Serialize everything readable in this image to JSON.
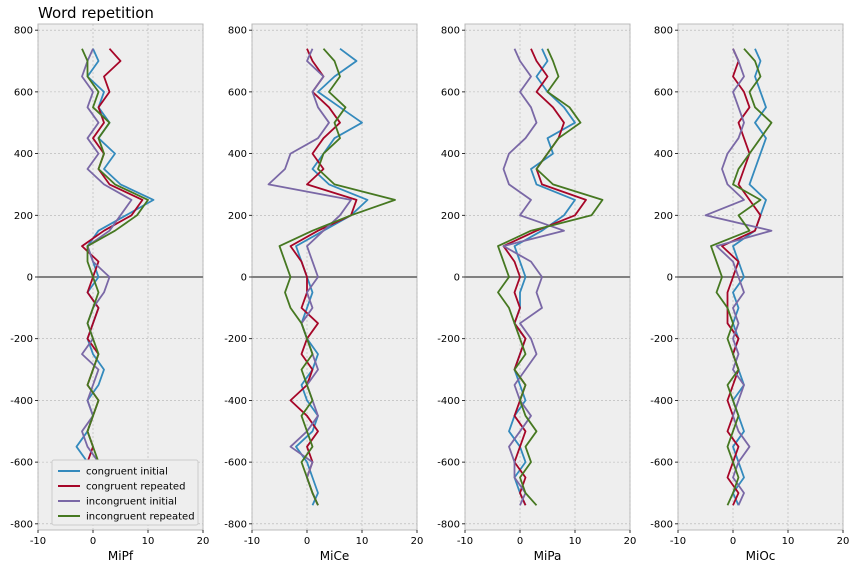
{
  "chart_data": {
    "type": "line",
    "title": "Word repetition",
    "orientation": "vertical-traces",
    "grid": true,
    "legend_placement": "lower-left of first panel",
    "series_meta": [
      {
        "name": "congruent initial",
        "color": "#348ABD"
      },
      {
        "name": "congruent repeated",
        "color": "#A60628"
      },
      {
        "name": "incongruent initial",
        "color": "#7A68A6"
      },
      {
        "name": "incongruent repeated",
        "color": "#467821"
      }
    ],
    "xlim": [
      -10,
      20
    ],
    "ylim": [
      -820,
      820
    ],
    "xticks": [
      -10,
      0,
      10,
      20
    ],
    "yticks": [
      -800,
      -600,
      -400,
      -200,
      0,
      200,
      400,
      600,
      800
    ],
    "ylim_note": "",
    "panels": [
      {
        "xlabel": "MiPf",
        "y": [
          -740,
          -700,
          -650,
          -600,
          -550,
          -500,
          -450,
          -400,
          -350,
          -300,
          -250,
          -200,
          -150,
          -100,
          -50,
          0,
          50,
          100,
          150,
          200,
          250,
          300,
          350,
          400,
          450,
          500,
          550,
          600,
          650,
          700,
          740
        ],
        "series": [
          {
            "name": "congruent initial",
            "values": [
              0,
              -1,
              0,
              -1,
              -3,
              -1,
              0,
              -1,
              1,
              2,
              0,
              -1,
              0,
              1,
              -1,
              1,
              0,
              -1,
              1,
              6,
              11,
              5,
              2,
              4,
              1,
              3,
              1,
              2,
              -1,
              1,
              0
            ]
          },
          {
            "name": "congruent repeated",
            "values": [
              -1,
              0,
              1,
              -1,
              0,
              -1,
              0,
              1,
              -1,
              0,
              1,
              -1,
              0,
              1,
              -1,
              0,
              1,
              -2,
              2,
              7,
              9,
              3,
              1,
              2,
              0,
              2,
              1,
              3,
              2,
              5,
              3
            ]
          },
          {
            "name": "incongruent initial",
            "values": [
              1,
              0,
              -1,
              1,
              -1,
              -2,
              0,
              -1,
              0,
              1,
              -2,
              0,
              -1,
              0,
              2,
              3,
              0,
              -1,
              3,
              5,
              7,
              2,
              -1,
              1,
              -1,
              1,
              -1,
              0,
              -2,
              -1,
              0
            ]
          },
          {
            "name": "incongruent repeated",
            "values": [
              -1,
              0,
              -1,
              1,
              0,
              -1,
              0,
              1,
              -1,
              0,
              1,
              0,
              -1,
              0,
              1,
              0,
              -1,
              -1,
              4,
              8,
              10,
              4,
              1,
              2,
              1,
              3,
              0,
              1,
              -1,
              -1,
              -2
            ]
          }
        ]
      },
      {
        "xlabel": "MiCe",
        "y": [
          -740,
          -700,
          -650,
          -600,
          -550,
          -500,
          -450,
          -400,
          -350,
          -300,
          -250,
          -200,
          -150,
          -100,
          -50,
          0,
          50,
          100,
          150,
          200,
          250,
          300,
          350,
          400,
          450,
          500,
          550,
          600,
          650,
          700,
          740
        ],
        "series": [
          {
            "name": "congruent initial",
            "values": [
              1,
              2,
              1,
              0,
              -2,
              1,
              2,
              0,
              -1,
              1,
              2,
              0,
              -1,
              0,
              1,
              0,
              -1,
              -2,
              3,
              8,
              11,
              4,
              1,
              3,
              5,
              10,
              6,
              2,
              5,
              9,
              6
            ]
          },
          {
            "name": "congruent repeated",
            "values": [
              2,
              1,
              0,
              1,
              0,
              2,
              0,
              -3,
              0,
              1,
              -1,
              0,
              2,
              -1,
              0,
              0,
              -1,
              -3,
              2,
              8,
              9,
              0,
              3,
              1,
              3,
              6,
              4,
              1,
              3,
              1,
              0
            ]
          },
          {
            "name": "incongruent initial",
            "values": [
              2,
              1,
              0,
              1,
              -3,
              0,
              2,
              1,
              0,
              2,
              1,
              0,
              -1,
              1,
              0,
              2,
              1,
              0,
              3,
              6,
              8,
              -7,
              -4,
              -3,
              2,
              4,
              2,
              1,
              3,
              0,
              1
            ]
          },
          {
            "name": "incongruent repeated",
            "values": [
              2,
              1,
              0,
              -1,
              1,
              0,
              -1,
              1,
              0,
              -1,
              1,
              0,
              -1,
              -3,
              -4,
              -3,
              -4,
              -5,
              1,
              8,
              16,
              5,
              2,
              3,
              6,
              5,
              7,
              4,
              6,
              5,
              3
            ]
          }
        ]
      },
      {
        "xlabel": "MiPa",
        "y": [
          -740,
          -700,
          -650,
          -600,
          -550,
          -500,
          -450,
          -400,
          -350,
          -300,
          -250,
          -200,
          -150,
          -100,
          -50,
          0,
          50,
          100,
          150,
          200,
          250,
          300,
          350,
          400,
          450,
          500,
          550,
          600,
          650,
          700,
          740
        ],
        "series": [
          {
            "name": "congruent initial",
            "values": [
              1,
              0,
              -1,
              1,
              0,
              -2,
              -1,
              1,
              0,
              -1,
              0,
              1,
              -1,
              0,
              0,
              1,
              0,
              -1,
              4,
              8,
              10,
              3,
              2,
              6,
              5,
              10,
              8,
              5,
              3,
              5,
              4
            ]
          },
          {
            "name": "congruent repeated",
            "values": [
              1,
              0,
              1,
              -1,
              0,
              1,
              -1,
              0,
              1,
              -1,
              0,
              1,
              -1,
              0,
              -1,
              0,
              -1,
              -3,
              3,
              10,
              12,
              4,
              3,
              5,
              7,
              8,
              6,
              3,
              5,
              3,
              2
            ]
          },
          {
            "name": "incongruent initial",
            "values": [
              0,
              1,
              -1,
              -1,
              -2,
              0,
              2,
              0,
              -1,
              1,
              3,
              2,
              0,
              4,
              3,
              4,
              2,
              -3,
              8,
              0,
              2,
              -2,
              -3,
              -2,
              1,
              3,
              2,
              0,
              2,
              0,
              -1
            ]
          },
          {
            "name": "incongruent repeated",
            "values": [
              3,
              1,
              0,
              2,
              1,
              3,
              1,
              0,
              1,
              -1,
              1,
              0,
              -1,
              -2,
              -4,
              -2,
              -3,
              -4,
              2,
              13,
              15,
              6,
              3,
              5,
              7,
              11,
              9,
              5,
              7,
              6,
              5
            ]
          }
        ]
      },
      {
        "xlabel": "MiOc",
        "y": [
          -740,
          -700,
          -650,
          -600,
          -550,
          -500,
          -450,
          -400,
          -350,
          -300,
          -250,
          -200,
          -150,
          -100,
          -50,
          0,
          50,
          100,
          150,
          200,
          250,
          300,
          350,
          400,
          450,
          500,
          550,
          600,
          650,
          700,
          740
        ],
        "series": [
          {
            "name": "congruent initial",
            "values": [
              1,
              0,
              2,
              1,
              0,
              2,
              1,
              0,
              2,
              1,
              0,
              1,
              0,
              1,
              0,
              2,
              1,
              0,
              4,
              5,
              6,
              3,
              4,
              5,
              6,
              4,
              6,
              5,
              4,
              5,
              4
            ]
          },
          {
            "name": "congruent repeated",
            "values": [
              0,
              1,
              -1,
              0,
              1,
              -1,
              0,
              -1,
              0,
              1,
              0,
              1,
              -1,
              -1,
              -1,
              0,
              1,
              -2,
              4,
              5,
              3,
              1,
              2,
              3,
              2,
              1,
              3,
              2,
              0,
              1,
              0
            ]
          },
          {
            "name": "incongruent initial",
            "values": [
              1,
              2,
              0,
              1,
              3,
              1,
              0,
              1,
              2,
              0,
              1,
              0,
              1,
              0,
              2,
              1,
              0,
              -3,
              7,
              -5,
              2,
              -1,
              -2,
              -1,
              1,
              2,
              1,
              0,
              2,
              1,
              0
            ]
          },
          {
            "name": "incongruent repeated",
            "values": [
              -1,
              0,
              1,
              0,
              -1,
              0,
              1,
              0,
              -1,
              1,
              0,
              -1,
              0,
              -1,
              -3,
              -2,
              -3,
              -4,
              3,
              1,
              5,
              0,
              1,
              3,
              5,
              7,
              4,
              3,
              5,
              4,
              2
            ]
          }
        ]
      }
    ]
  }
}
